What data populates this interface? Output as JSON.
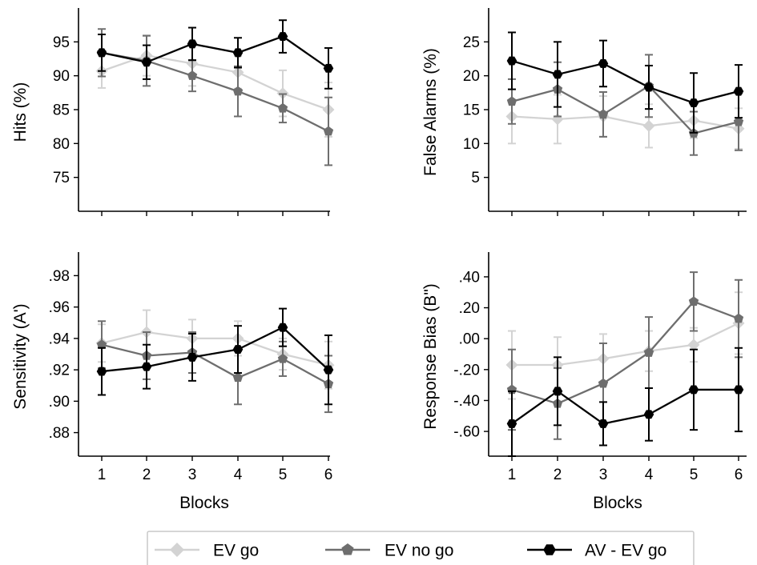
{
  "chart_data": [
    {
      "type": "line",
      "panel": "top-left",
      "ylabel": "Hits (%)",
      "xlabel": "",
      "x": [
        1,
        2,
        3,
        4,
        5,
        6
      ],
      "ylim": [
        70,
        100
      ],
      "yticks": [
        75,
        80,
        85,
        90,
        95
      ],
      "ytick_labels": [
        "75",
        "80",
        "85",
        "90",
        "95"
      ],
      "show_xtick_labels": false,
      "series": [
        {
          "name": "EV go",
          "values": [
            90.7,
            93.0,
            91.8,
            90.5,
            87.4,
            85.0
          ],
          "err": [
            2.5,
            3.0,
            3.3,
            2.4,
            3.4,
            4.0
          ]
        },
        {
          "name": "EV no go",
          "values": [
            93.4,
            92.2,
            90.0,
            87.7,
            85.2,
            81.8
          ],
          "err": [
            3.5,
            3.7,
            2.3,
            3.7,
            2.1,
            5.0
          ]
        },
        {
          "name": "AV - EV go",
          "values": [
            93.4,
            92.0,
            94.7,
            93.4,
            95.8,
            91.1
          ],
          "err": [
            2.7,
            2.5,
            2.4,
            2.2,
            2.4,
            3.0
          ]
        }
      ]
    },
    {
      "type": "line",
      "panel": "top-right",
      "ylabel": "False Alarms (%)",
      "xlabel": "",
      "x": [
        1,
        2,
        3,
        4,
        5,
        6
      ],
      "ylim": [
        0,
        30
      ],
      "yticks": [
        5,
        10,
        15,
        20,
        25
      ],
      "ytick_labels": [
        "5",
        "10",
        "15",
        "20",
        "25"
      ],
      "show_xtick_labels": false,
      "series": [
        {
          "name": "EV go",
          "values": [
            14.0,
            13.6,
            14.0,
            12.6,
            13.4,
            12.2
          ],
          "err": [
            4.0,
            3.6,
            3.0,
            3.2,
            2.6,
            3.0
          ]
        },
        {
          "name": "EV no go",
          "values": [
            16.2,
            18.0,
            14.3,
            18.5,
            11.5,
            13.2
          ],
          "err": [
            3.3,
            4.0,
            3.3,
            4.6,
            3.2,
            4.2
          ]
        },
        {
          "name": "AV - EV go",
          "values": [
            22.2,
            20.2,
            21.8,
            18.3,
            16.0,
            17.7
          ],
          "err": [
            4.2,
            4.8,
            3.4,
            3.2,
            4.4,
            3.9
          ]
        }
      ]
    },
    {
      "type": "line",
      "panel": "bottom-left",
      "ylabel": "Sensitivity (A')",
      "xlabel": "Blocks",
      "x": [
        1,
        2,
        3,
        4,
        5,
        6
      ],
      "ylim": [
        0.865,
        0.995
      ],
      "yticks": [
        0.88,
        0.9,
        0.92,
        0.94,
        0.96,
        0.98
      ],
      "ytick_labels": [
        ".88",
        ".90",
        ".92",
        ".94",
        ".96",
        ".98"
      ],
      "show_xtick_labels": true,
      "series": [
        {
          "name": "EV go",
          "values": [
            0.937,
            0.944,
            0.94,
            0.94,
            0.93,
            0.923
          ],
          "err": [
            0.012,
            0.014,
            0.012,
            0.011,
            0.01,
            0.015
          ]
        },
        {
          "name": "EV no go",
          "values": [
            0.936,
            0.929,
            0.931,
            0.915,
            0.927,
            0.911
          ],
          "err": [
            0.015,
            0.015,
            0.013,
            0.017,
            0.011,
            0.018
          ]
        },
        {
          "name": "AV - EV go",
          "values": [
            0.919,
            0.922,
            0.928,
            0.933,
            0.947,
            0.92
          ],
          "err": [
            0.015,
            0.014,
            0.015,
            0.015,
            0.012,
            0.022
          ]
        }
      ]
    },
    {
      "type": "line",
      "panel": "bottom-right",
      "ylabel": "Response Bias (B\")",
      "xlabel": "Blocks",
      "x": [
        1,
        2,
        3,
        4,
        5,
        6
      ],
      "ylim": [
        -0.76,
        0.56
      ],
      "yticks": [
        -0.6,
        -0.4,
        -0.2,
        0.0,
        0.2,
        0.4
      ],
      "ytick_labels": [
        "-.60",
        "-.40",
        "-.20",
        ".00",
        ".20",
        ".40"
      ],
      "show_xtick_labels": true,
      "series": [
        {
          "name": "EV go",
          "values": [
            -0.17,
            -0.17,
            -0.13,
            -0.08,
            -0.04,
            0.1
          ],
          "err": [
            0.22,
            0.18,
            0.16,
            0.13,
            0.11,
            0.2
          ]
        },
        {
          "name": "EV no go",
          "values": [
            -0.33,
            -0.42,
            -0.29,
            -0.09,
            0.24,
            0.13
          ],
          "err": [
            0.26,
            0.23,
            0.26,
            0.23,
            0.19,
            0.25
          ]
        },
        {
          "name": "AV - EV go",
          "values": [
            -0.55,
            -0.34,
            -0.55,
            -0.49,
            -0.33,
            -0.33
          ],
          "err": [
            0.21,
            0.22,
            0.14,
            0.17,
            0.26,
            0.27
          ]
        }
      ]
    }
  ],
  "legend": {
    "placement": "bottom-center",
    "entries": [
      {
        "label": "EV go",
        "marker": "diamond",
        "color": "#d3d3d3"
      },
      {
        "label": "EV no go",
        "marker": "pentagon",
        "color": "#6e6e6e"
      },
      {
        "label": "AV - EV go",
        "marker": "hexagon",
        "color": "#000000"
      }
    ]
  },
  "colors": {
    "EV go": "#d3d3d3",
    "EV no go": "#6e6e6e",
    "AV - EV go": "#000000"
  }
}
